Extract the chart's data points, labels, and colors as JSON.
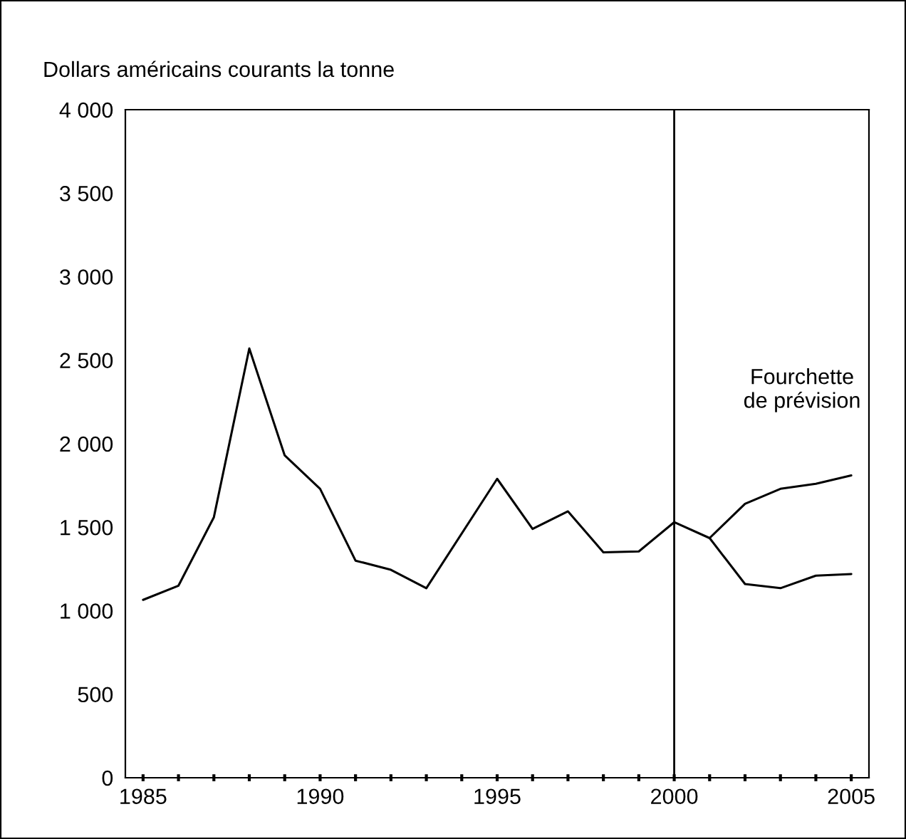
{
  "chart_data": {
    "type": "line",
    "ylabel": "Dollars américains courants la tonne",
    "series": [
      {
        "color": "#000000",
        "x": [
          1985,
          1986,
          1987,
          1988,
          1989,
          1990,
          1991,
          1992,
          1993,
          1995,
          1996,
          1997,
          1998,
          1999,
          2000,
          2001
        ],
        "values": [
          1065,
          1150,
          1560,
          2570,
          1930,
          1730,
          1300,
          1245,
          1135,
          1790,
          1490,
          1595,
          1350,
          1355,
          1530,
          1435
        ]
      },
      {
        "color": "#000000",
        "x": [
          2001,
          2002,
          2003,
          2004,
          2005
        ],
        "values": [
          1435,
          1640,
          1730,
          1760,
          1810
        ]
      },
      {
        "color": "#000000",
        "x": [
          2001,
          2002,
          2003,
          2004,
          2005
        ],
        "values": [
          1435,
          1160,
          1135,
          1210,
          1220
        ]
      }
    ],
    "xlim": [
      1984.5,
      2005.5
    ],
    "xticks": [
      1985,
      {
        "value": 1986,
        "label": null
      },
      {
        "value": 1987,
        "label": null
      },
      {
        "value": 1988,
        "label": null
      },
      {
        "value": 1989,
        "label": null
      },
      1990,
      {
        "value": 1991,
        "label": null
      },
      {
        "value": 1992,
        "label": null
      },
      {
        "value": 1993,
        "label": null
      },
      {
        "value": 1994,
        "label": null
      },
      1995,
      {
        "value": 1996,
        "label": null
      },
      {
        "value": 1997,
        "label": null
      },
      {
        "value": 1998,
        "label": null
      },
      {
        "value": 1999,
        "label": null
      },
      2000,
      {
        "value": 2001,
        "label": null
      },
      {
        "value": 2002,
        "label": null
      },
      {
        "value": 2003,
        "label": null
      },
      {
        "value": 2004,
        "label": null
      },
      2005
    ],
    "ylim": [
      0,
      4000
    ],
    "yticks": [
      0,
      500,
      {
        "value": 1000,
        "label": "1 000"
      },
      {
        "value": 1500,
        "label": "1 500"
      },
      {
        "value": 2000,
        "label": "2 000"
      },
      {
        "value": 2500,
        "label": "2 500"
      },
      {
        "value": 3000,
        "label": "3 000"
      },
      {
        "value": 3500,
        "label": "3 500"
      },
      {
        "value": 4000,
        "label": "4 000"
      }
    ],
    "ref_lines": [
      {
        "axis": "x",
        "value": 2000,
        "color": "#000000",
        "line_style": "solid"
      }
    ],
    "annotations": [
      "Fourchette\nde prévision"
    ],
    "grid": false,
    "legend": false,
    "marker": "none",
    "line_style": "solid"
  }
}
